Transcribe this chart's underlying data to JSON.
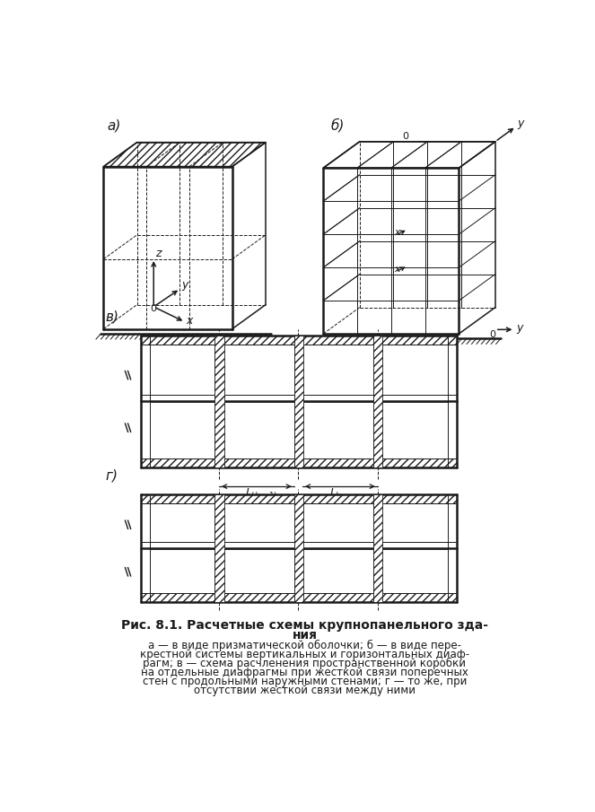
{
  "bg_color": "#ffffff",
  "line_color": "#1a1a1a",
  "title_line1": "Рис. 8.1. Расчетные схемы крупнопанельного зда-",
  "title_line2": "ния",
  "caption_line1": "а — в виде призматической оболочки; б — в виде пере-",
  "caption_line2": "крестной системы вертикальных и горизонтальных диаф-",
  "caption_line3": "рагм; в — схема расчленения пространственной коробки",
  "caption_line4": "на отдельные диафрагмы при жесткой связи поперечных",
  "caption_line5": "стен с продольными наружными стенами; г — то же, при",
  "caption_line6": "отсутствии жесткой связи между ними",
  "label_a": "а)",
  "label_b": "б)",
  "label_v": "в)",
  "label_g": "г)"
}
